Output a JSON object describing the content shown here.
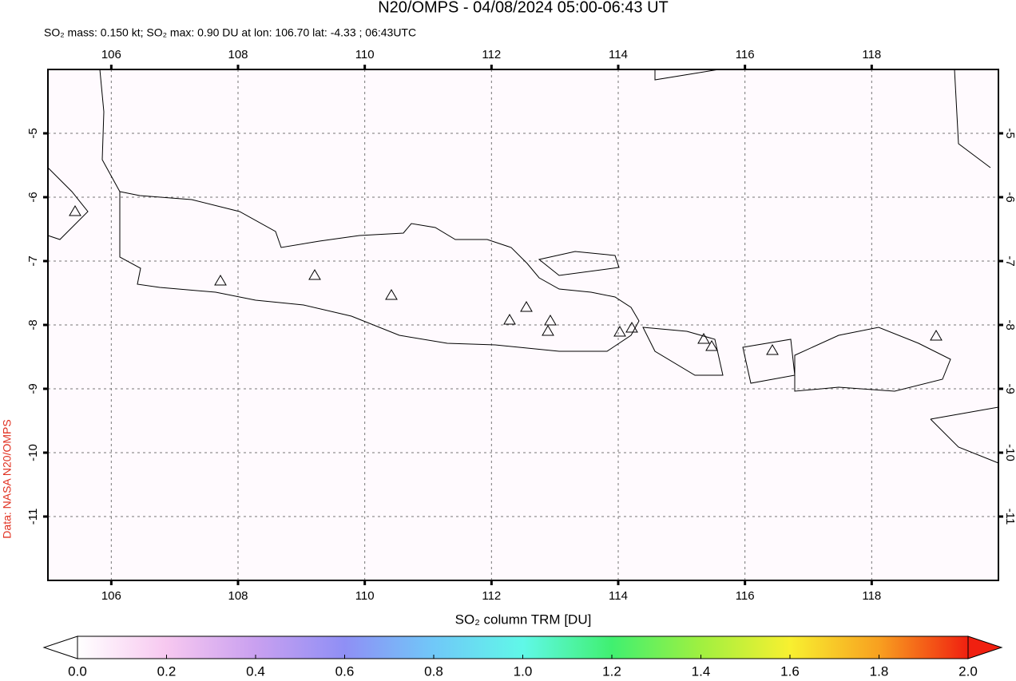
{
  "header": {
    "title": "N20/OMPS - 04/08/2024 05:00-06:43 UT",
    "subtitle": "SO₂ mass: 0.150 kt; SO₂ max: 0.90 DU at lon: 106.70 lat: -4.33 ; 06:43UTC"
  },
  "map": {
    "xlim": [
      105,
      120
    ],
    "ylim": [
      -12,
      -4
    ],
    "xticks": [
      106,
      108,
      110,
      112,
      114,
      116,
      118
    ],
    "yticks": [
      -5,
      -6,
      -7,
      -8,
      -9,
      -10,
      -11
    ],
    "grid": true
  },
  "colorbar": {
    "label": "SO₂ column TRM [DU]",
    "lim": [
      0,
      2
    ],
    "ticks": [
      {
        "value": 0,
        "label": "0.0"
      },
      {
        "value": 0.2,
        "label": "0.2"
      },
      {
        "value": 0.4,
        "label": "0.4"
      },
      {
        "value": 0.6,
        "label": "0.6"
      },
      {
        "value": 0.8,
        "label": "0.8"
      },
      {
        "value": 1,
        "label": "1.0"
      },
      {
        "value": 1.2,
        "label": "1.2"
      },
      {
        "value": 1.4,
        "label": "1.4"
      },
      {
        "value": 1.6,
        "label": "1.6"
      },
      {
        "value": 1.8,
        "label": "1.8"
      },
      {
        "value": 2,
        "label": "2.0"
      }
    ],
    "colors": [
      "#ffffff",
      "#f7c8f0",
      "#c9a0f0",
      "#8f8ff5",
      "#70c8f8",
      "#60f8e8",
      "#40f070",
      "#a0f040",
      "#f8f030",
      "#f8a020",
      "#f02010"
    ]
  },
  "credit": "Data: NASA N20/OMPS"
}
